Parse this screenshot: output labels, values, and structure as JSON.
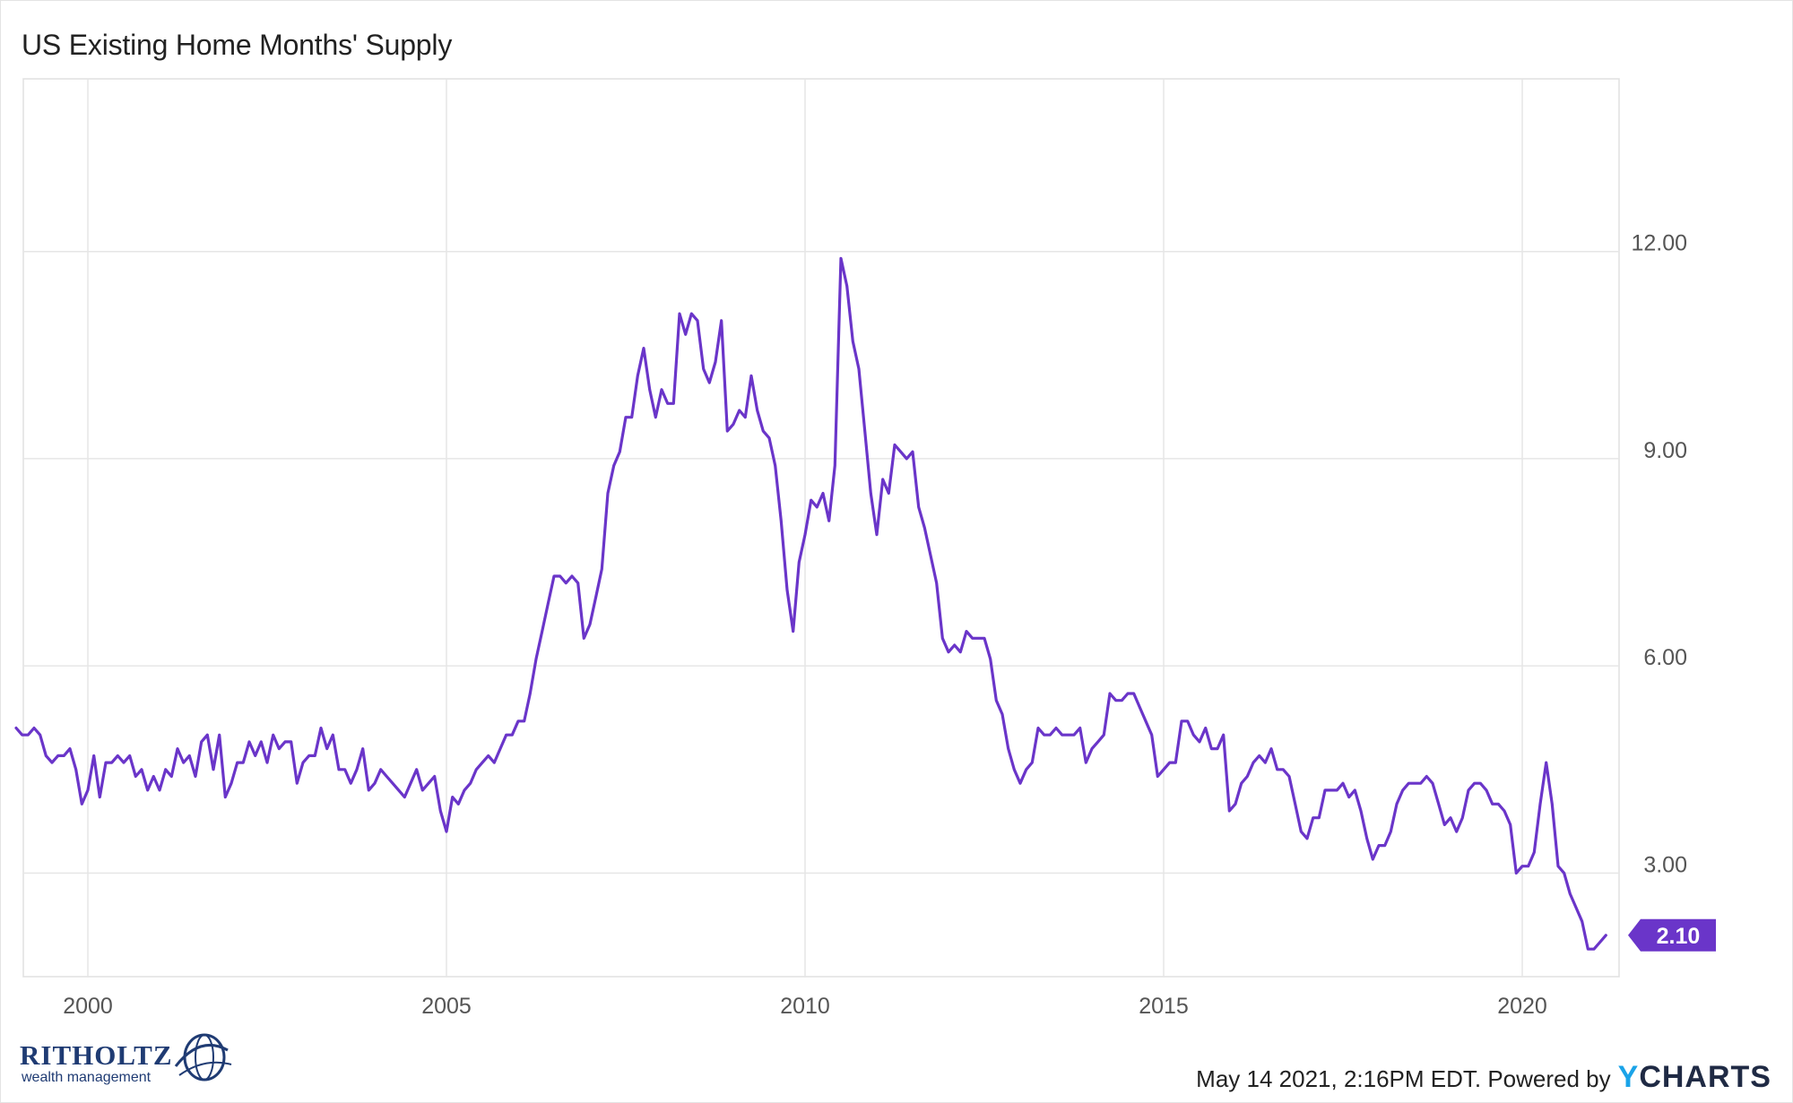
{
  "title": "US Existing Home Months' Supply",
  "footer": {
    "timestamp_text": "May 14 2021, 2:16PM EDT. Powered by",
    "brand_y": "Y",
    "brand_rest": "CHARTS"
  },
  "logo": {
    "word": "RITHOLTZ",
    "sub": "wealth management"
  },
  "colors": {
    "line": "#6a35c9",
    "grid": "#e6e6e6",
    "badge": "#6a35c9"
  },
  "chart_data": {
    "type": "line",
    "title": "US Existing Home Months' Supply",
    "xlabel": "",
    "ylabel": "",
    "x_range": [
      1999.1,
      2021.35
    ],
    "ylim": [
      1.5,
      14.5
    ],
    "x_ticks": [
      {
        "value": 2000,
        "label": "2000"
      },
      {
        "value": 2005,
        "label": "2005"
      },
      {
        "value": 2010,
        "label": "2010"
      },
      {
        "value": 2015,
        "label": "2015"
      },
      {
        "value": 2020,
        "label": "2020"
      }
    ],
    "y_ticks": [
      {
        "value": 3,
        "label": "3.00"
      },
      {
        "value": 6,
        "label": "6.00"
      },
      {
        "value": 9,
        "label": "9.00"
      },
      {
        "value": 12,
        "label": "12.00"
      }
    ],
    "grid": true,
    "last_value_label": "2.10",
    "series": [
      {
        "start": "1999-01",
        "frequency": "monthly",
        "values": [
          5.1,
          5.0,
          5.0,
          5.1,
          5.0,
          4.7,
          4.6,
          4.7,
          4.7,
          4.8,
          4.5,
          4.0,
          4.2,
          4.7,
          4.1,
          4.6,
          4.6,
          4.7,
          4.6,
          4.7,
          4.4,
          4.5,
          4.2,
          4.4,
          4.2,
          4.5,
          4.4,
          4.8,
          4.6,
          4.7,
          4.4,
          4.9,
          5.0,
          4.5,
          5.0,
          4.1,
          4.3,
          4.6,
          4.6,
          4.9,
          4.7,
          4.9,
          4.6,
          5.0,
          4.8,
          4.9,
          4.9,
          4.3,
          4.6,
          4.7,
          4.7,
          5.1,
          4.8,
          5.0,
          4.5,
          4.5,
          4.3,
          4.5,
          4.8,
          4.2,
          4.3,
          4.5,
          4.4,
          4.3,
          4.2,
          4.1,
          4.3,
          4.5,
          4.2,
          4.3,
          4.4,
          3.9,
          3.6,
          4.1,
          4.0,
          4.2,
          4.3,
          4.5,
          4.6,
          4.7,
          4.6,
          4.8,
          5.0,
          5.0,
          5.2,
          5.2,
          5.6,
          6.1,
          6.5,
          6.9,
          7.3,
          7.3,
          7.2,
          7.3,
          7.2,
          6.4,
          6.6,
          7.0,
          7.4,
          8.5,
          8.9,
          9.1,
          9.6,
          9.6,
          10.2,
          10.6,
          10.0,
          9.6,
          10.0,
          9.8,
          9.8,
          11.1,
          10.8,
          11.1,
          11.0,
          10.3,
          10.1,
          10.4,
          11.0,
          9.4,
          9.5,
          9.7,
          9.6,
          10.2,
          9.7,
          9.4,
          9.3,
          8.9,
          8.1,
          7.1,
          6.5,
          7.5,
          7.9,
          8.4,
          8.3,
          8.5,
          8.1,
          8.9,
          11.9,
          11.5,
          10.7,
          10.3,
          9.4,
          8.5,
          7.9,
          8.7,
          8.5,
          9.2,
          9.1,
          9.0,
          9.1,
          8.3,
          8.0,
          7.6,
          7.2,
          6.4,
          6.2,
          6.3,
          6.2,
          6.5,
          6.4,
          6.4,
          6.4,
          6.1,
          5.5,
          5.3,
          4.8,
          4.5,
          4.3,
          4.5,
          4.6,
          5.1,
          5.0,
          5.0,
          5.1,
          5.0,
          5.0,
          5.0,
          5.1,
          4.6,
          4.8,
          4.9,
          5.0,
          5.6,
          5.5,
          5.5,
          5.6,
          5.6,
          5.4,
          5.2,
          5.0,
          4.4,
          4.5,
          4.6,
          4.6,
          5.2,
          5.2,
          5.0,
          4.9,
          5.1,
          4.8,
          4.8,
          5.0,
          3.9,
          4.0,
          4.3,
          4.4,
          4.6,
          4.7,
          4.6,
          4.8,
          4.5,
          4.5,
          4.4,
          4.0,
          3.6,
          3.5,
          3.8,
          3.8,
          4.2,
          4.2,
          4.2,
          4.3,
          4.1,
          4.2,
          3.9,
          3.5,
          3.2,
          3.4,
          3.4,
          3.6,
          4.0,
          4.2,
          4.3,
          4.3,
          4.3,
          4.4,
          4.3,
          4.0,
          3.7,
          3.8,
          3.6,
          3.8,
          4.2,
          4.3,
          4.3,
          4.2,
          4.0,
          4.0,
          3.9,
          3.7,
          3.0,
          3.1,
          3.1,
          3.3,
          4.0,
          4.6,
          4.0,
          3.1,
          3.0,
          2.7,
          2.5,
          2.3,
          1.9,
          1.9,
          2.0,
          2.1
        ]
      }
    ]
  }
}
